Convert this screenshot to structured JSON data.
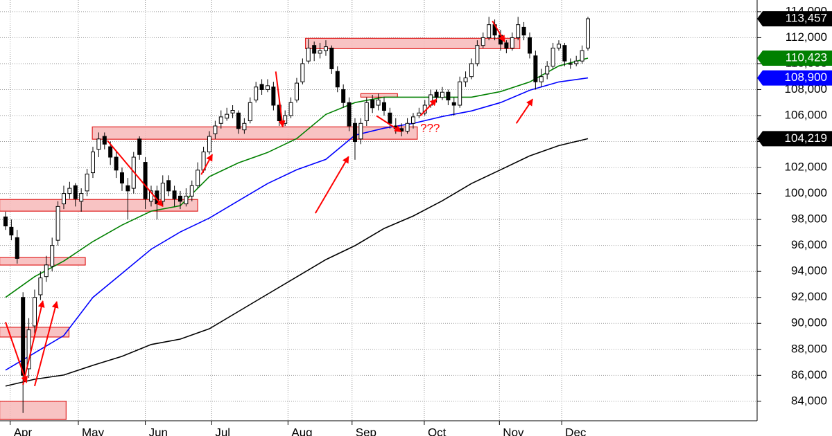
{
  "chart_data": {
    "type": "candlestick",
    "xlim": [
      -0.95,
      129.05
    ],
    "ylim": [
      82500,
      114900
    ],
    "grid": true,
    "up_color": "#ffffff",
    "down_color": "#000000",
    "xticks": [
      {
        "value": 0.8,
        "label": "Apr"
      },
      {
        "value": 12.5,
        "label": "May"
      },
      {
        "value": 24,
        "label": "Jun"
      },
      {
        "value": 35.4,
        "label": "Jul"
      },
      {
        "value": 48.5,
        "label": "Aug"
      },
      {
        "value": 59.5,
        "label": "Sep"
      },
      {
        "value": 71.9,
        "label": "Oct"
      },
      {
        "value": 84.8,
        "label": "Nov"
      },
      {
        "value": 95.5,
        "label": "Dec"
      }
    ],
    "yticks": [
      {
        "value": 84000,
        "label": "84,000"
      },
      {
        "value": 86000,
        "label": "86,000"
      },
      {
        "value": 88000,
        "label": "88,000"
      },
      {
        "value": 90000,
        "label": "90,000"
      },
      {
        "value": 92000,
        "label": "92,000"
      },
      {
        "value": 94000,
        "label": "94,000"
      },
      {
        "value": 96000,
        "label": "96,000"
      },
      {
        "value": 98000,
        "label": "98,000"
      },
      {
        "value": 100000,
        "label": "100,000"
      },
      {
        "value": 102000,
        "label": "102,000"
      },
      {
        "value": 104000,
        "label": "104,000"
      },
      {
        "value": 106000,
        "label": "106,000"
      },
      {
        "value": 108000,
        "label": "108,000"
      },
      {
        "value": 110000,
        "label": "110,000"
      },
      {
        "value": 112000,
        "label": "112,000"
      },
      {
        "value": 114000,
        "label": "114,000"
      }
    ],
    "candles": [
      [
        98200,
        98600,
        97200,
        97500
      ],
      [
        97400,
        98000,
        96400,
        96800
      ],
      [
        96600,
        97200,
        94600,
        95000
      ],
      [
        92000,
        92400,
        83100,
        86000
      ],
      [
        86500,
        90400,
        85800,
        89500
      ],
      [
        89800,
        92600,
        89200,
        92000
      ],
      [
        92200,
        94000,
        91800,
        93500
      ],
      [
        93600,
        95200,
        93200,
        94500
      ],
      [
        94400,
        96600,
        94000,
        96000
      ],
      [
        96400,
        99400,
        96000,
        99000
      ],
      [
        99200,
        100600,
        98800,
        100000
      ],
      [
        100000,
        100900,
        99600,
        100400
      ],
      [
        100600,
        100800,
        99000,
        99600
      ],
      [
        99400,
        100400,
        98600,
        100000
      ],
      [
        100200,
        101900,
        99800,
        101500
      ],
      [
        101600,
        103600,
        101200,
        103200
      ],
      [
        103400,
        104700,
        102800,
        104200
      ],
      [
        104400,
        104700,
        103400,
        103800
      ],
      [
        103600,
        104000,
        102200,
        102800
      ],
      [
        102800,
        103200,
        101200,
        101800
      ],
      [
        101600,
        102000,
        100200,
        100800
      ],
      [
        100600,
        101200,
        98000,
        100200
      ],
      [
        100400,
        103200,
        100000,
        102800
      ],
      [
        104200,
        104400,
        102600,
        103000
      ],
      [
        102400,
        102800,
        98800,
        99600
      ],
      [
        99400,
        100600,
        99000,
        100200
      ],
      [
        100200,
        100600,
        98000,
        99200
      ],
      [
        99400,
        101400,
        99000,
        100800
      ],
      [
        101000,
        101400,
        99800,
        100200
      ],
      [
        100200,
        100600,
        99000,
        99600
      ],
      [
        99800,
        100200,
        98800,
        99400
      ],
      [
        99200,
        100400,
        99000,
        99800
      ],
      [
        99800,
        101000,
        99400,
        100600
      ],
      [
        100600,
        102400,
        100400,
        101800
      ],
      [
        101800,
        103600,
        101600,
        103200
      ],
      [
        103200,
        104800,
        103000,
        104400
      ],
      [
        104600,
        105600,
        104200,
        105200
      ],
      [
        105400,
        106400,
        105000,
        105900
      ],
      [
        105800,
        106600,
        105600,
        106100
      ],
      [
        106200,
        106800,
        105800,
        106400
      ],
      [
        106200,
        106400,
        104600,
        105000
      ],
      [
        104900,
        105800,
        104600,
        105400
      ],
      [
        105600,
        107400,
        105400,
        107000
      ],
      [
        107200,
        108600,
        107000,
        108200
      ],
      [
        108400,
        108800,
        107600,
        108000
      ],
      [
        108000,
        108800,
        107800,
        108300
      ],
      [
        108200,
        108600,
        106400,
        106800
      ],
      [
        106800,
        107200,
        105200,
        105600
      ],
      [
        105400,
        106400,
        105200,
        106000
      ],
      [
        106000,
        107400,
        105800,
        107000
      ],
      [
        107200,
        108900,
        107000,
        108500
      ],
      [
        108600,
        110400,
        108400,
        110000
      ],
      [
        110200,
        111900,
        110000,
        111200
      ],
      [
        111400,
        111700,
        110200,
        110800
      ],
      [
        110800,
        111600,
        110400,
        111000
      ],
      [
        111000,
        111800,
        110600,
        111300
      ],
      [
        111200,
        111400,
        109200,
        109600
      ],
      [
        109400,
        109800,
        107800,
        108200
      ],
      [
        108000,
        108400,
        106600,
        107000
      ],
      [
        107000,
        107400,
        104800,
        105200
      ],
      [
        105400,
        105800,
        102600,
        104000
      ],
      [
        104200,
        105800,
        103800,
        105400
      ],
      [
        105600,
        107400,
        105200,
        107000
      ],
      [
        107200,
        107600,
        106200,
        106600
      ],
      [
        106800,
        107700,
        106400,
        107200
      ],
      [
        107000,
        107400,
        106000,
        106400
      ],
      [
        106200,
        106600,
        105000,
        105400
      ],
      [
        105200,
        105800,
        104600,
        105000
      ],
      [
        105000,
        105400,
        104400,
        104800
      ],
      [
        104800,
        105800,
        104600,
        105400
      ],
      [
        105400,
        106200,
        105000,
        105900
      ],
      [
        106000,
        106600,
        105800,
        106200
      ],
      [
        106200,
        107200,
        106000,
        106800
      ],
      [
        106800,
        108000,
        106600,
        107600
      ],
      [
        107800,
        108000,
        107000,
        107400
      ],
      [
        107400,
        108200,
        107200,
        107800
      ],
      [
        107800,
        108000,
        106800,
        107200
      ],
      [
        107000,
        107400,
        106000,
        106800
      ],
      [
        106800,
        109000,
        106600,
        108600
      ],
      [
        108600,
        109400,
        108200,
        108900
      ],
      [
        109000,
        110400,
        108800,
        110000
      ],
      [
        110000,
        111800,
        109800,
        111400
      ],
      [
        111400,
        112400,
        111200,
        112000
      ],
      [
        112000,
        113600,
        111800,
        113000
      ],
      [
        113000,
        113400,
        111800,
        112200
      ],
      [
        112200,
        112600,
        111000,
        111500
      ],
      [
        111600,
        111800,
        110800,
        111200
      ],
      [
        111200,
        112400,
        111000,
        112000
      ],
      [
        112000,
        113600,
        111800,
        113000
      ],
      [
        112800,
        113200,
        111800,
        112200
      ],
      [
        112000,
        112400,
        110400,
        110800
      ],
      [
        110600,
        111000,
        108000,
        108600
      ],
      [
        108600,
        109600,
        108200,
        109000
      ],
      [
        109200,
        110200,
        108800,
        109800
      ],
      [
        109800,
        111600,
        109600,
        111200
      ],
      [
        111200,
        111800,
        111000,
        111500
      ],
      [
        111400,
        111600,
        109800,
        110200
      ],
      [
        110000,
        110400,
        109600,
        110000
      ],
      [
        110000,
        110600,
        109800,
        110200
      ],
      [
        110200,
        111400,
        110000,
        111000
      ],
      [
        111200,
        113600,
        111000,
        113457
      ]
    ],
    "last_label": "113,457",
    "last_label_color": "#000000",
    "ma": [
      {
        "color": "#008000",
        "last_label": "110,423",
        "x": [
          0,
          5,
          10,
          15,
          20,
          25,
          30,
          35,
          40,
          45,
          50,
          55,
          60,
          65,
          70,
          75,
          80,
          85,
          90,
          95,
          100
        ],
        "values": [
          92000,
          93600,
          94800,
          96300,
          97570,
          98640,
          99060,
          101300,
          102360,
          103160,
          104230,
          106090,
          107000,
          107420,
          107420,
          107420,
          107420,
          107850,
          108590,
          109820,
          110423
        ]
      },
      {
        "color": "#0000ff",
        "last_label": "108,900",
        "x": [
          0,
          5,
          10,
          15,
          20,
          25,
          30,
          35,
          40,
          45,
          50,
          55,
          60,
          65,
          70,
          75,
          80,
          85,
          90,
          95,
          100
        ],
        "values": [
          86400,
          87730,
          89060,
          92000,
          93850,
          95710,
          97040,
          98110,
          99440,
          100770,
          101830,
          102630,
          104490,
          105030,
          105400,
          105930,
          106360,
          107000,
          107950,
          108590,
          108900
        ]
      },
      {
        "color": "#000000",
        "last_label": "104,219",
        "x": [
          0,
          5,
          10,
          15,
          20,
          25,
          30,
          35,
          40,
          45,
          50,
          55,
          60,
          65,
          70,
          75,
          80,
          85,
          90,
          95,
          100
        ],
        "values": [
          85170,
          85700,
          86020,
          86770,
          87460,
          88370,
          88790,
          89590,
          90920,
          92250,
          93580,
          94910,
          95980,
          97310,
          98270,
          99440,
          100770,
          101830,
          102900,
          103690,
          104219
        ]
      }
    ],
    "zones": [
      {
        "x": [
          -1,
          10.4
        ],
        "y": [
          82600,
          84000
        ]
      },
      {
        "x": [
          -1,
          10.9
        ],
        "y": [
          88950,
          89700
        ]
      },
      {
        "x": [
          -1,
          13.7
        ],
        "y": [
          94490,
          95070
        ]
      },
      {
        "x": [
          -1,
          33
        ],
        "y": [
          98640,
          99540
        ]
      },
      {
        "x": [
          14.9,
          70.7
        ],
        "y": [
          104180,
          105130
        ]
      },
      {
        "x": [
          51.5,
          88.3
        ],
        "y": [
          111150,
          111950
        ]
      },
      {
        "x": [
          61,
          67.3
        ],
        "y": [
          107420,
          107690
        ]
      }
    ],
    "zone_color": "#f7b9b9",
    "arrow_color": "#ff0000",
    "arrows": [
      {
        "x": [
          0,
          3.6
        ],
        "y": [
          90100,
          85440
        ]
      },
      {
        "x": [
          3,
          6.4
        ],
        "y": [
          85280,
          91720
        ]
      },
      {
        "x": [
          5,
          8.8
        ],
        "y": [
          85170,
          91670
        ]
      },
      {
        "x": [
          17.5,
          27
        ],
        "y": [
          104070,
          99010
        ]
      },
      {
        "x": [
          33.6,
          35.5
        ],
        "y": [
          101460,
          103000
        ]
      },
      {
        "x": [
          46.4,
          47.6
        ],
        "y": [
          109390,
          105130
        ]
      },
      {
        "x": [
          53.2,
          58.9
        ],
        "y": [
          98480,
          102840
        ]
      },
      {
        "x": [
          63.7,
          67.9
        ],
        "y": [
          105980,
          104760
        ]
      },
      {
        "x": [
          71.2,
          74
        ],
        "y": [
          105980,
          107260
        ]
      },
      {
        "x": [
          83.6,
          85.7
        ],
        "y": [
          113280,
          111680
        ]
      },
      {
        "x": [
          87.7,
          90.5
        ],
        "y": [
          105400,
          107260
        ]
      }
    ],
    "annotations": [
      {
        "text": "???",
        "x": 72.9,
        "y": 105000
      }
    ]
  }
}
